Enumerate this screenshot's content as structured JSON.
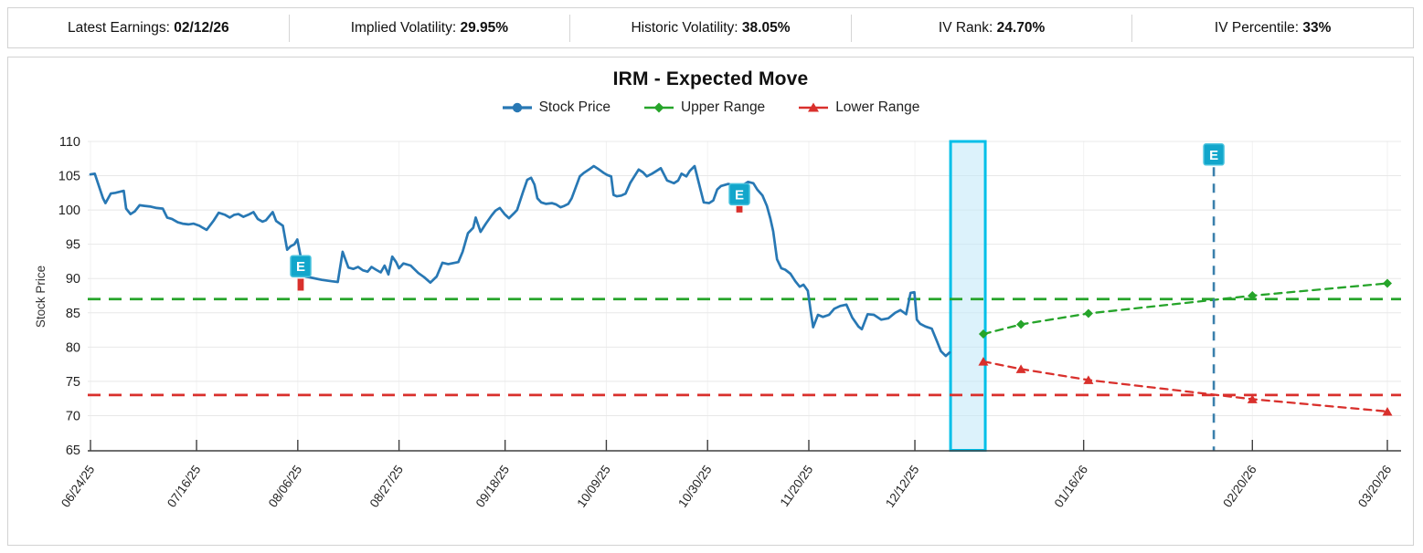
{
  "header": {
    "stats": [
      {
        "label": "Latest Earnings:",
        "value": "02/12/26"
      },
      {
        "label": "Implied Volatility:",
        "value": "29.95%"
      },
      {
        "label": "Historic Volatility:",
        "value": "38.05%"
      },
      {
        "label": "IV Rank:",
        "value": "24.70%"
      },
      {
        "label": "IV Percentile:",
        "value": "33%"
      }
    ]
  },
  "chart_data": {
    "type": "line",
    "title": "IRM - Expected Move",
    "ylabel": "Stock Price",
    "ylim": [
      65,
      110
    ],
    "ytick_step": 5,
    "grid": true,
    "legend_position": "top-center",
    "x_axis": {
      "tick_days": [
        0,
        22,
        43,
        64,
        86,
        107,
        128,
        149,
        171,
        206,
        241,
        269
      ],
      "tick_labels": [
        "06/24/25",
        "07/16/25",
        "08/06/25",
        "08/27/25",
        "09/18/25",
        "10/09/25",
        "10/30/25",
        "11/20/25",
        "12/12/25",
        "01/16/26",
        "02/20/26",
        "03/20/26"
      ]
    },
    "colors": {
      "stock": "#2878b4",
      "upper": "#26a42a",
      "lower": "#d9302c",
      "band_fill": "#bfe8f7",
      "band_border": "#00bfe8",
      "badge": "#12a6cb",
      "earnings_line": "#3b80ac",
      "gridline": "#e8e8e8",
      "axis": "#3f3f3f"
    },
    "series": [
      {
        "name": "Stock Price",
        "color": "#2878b4",
        "style": "solid",
        "marker": "circle",
        "points": [
          [
            0,
            105.2
          ],
          [
            0.9,
            105.3
          ],
          [
            2.6,
            101.7
          ],
          [
            3.1,
            101.0
          ],
          [
            4.2,
            102.4
          ],
          [
            5.2,
            102.5
          ],
          [
            6.9,
            102.8
          ],
          [
            7.4,
            100.2
          ],
          [
            8.3,
            99.4
          ],
          [
            9.2,
            99.8
          ],
          [
            10.2,
            100.7
          ],
          [
            11.2,
            100.6
          ],
          [
            12.5,
            100.5
          ],
          [
            13.7,
            100.3
          ],
          [
            15,
            100.2
          ],
          [
            15.9,
            98.9
          ],
          [
            16.9,
            98.7
          ],
          [
            18.1,
            98.2
          ],
          [
            19.1,
            98.0
          ],
          [
            20.3,
            97.9
          ],
          [
            21.4,
            98.0
          ],
          [
            22.6,
            97.7
          ],
          [
            23.3,
            97.4
          ],
          [
            24.1,
            97.1
          ],
          [
            25.6,
            98.5
          ],
          [
            26.6,
            99.6
          ],
          [
            27.9,
            99.3
          ],
          [
            28.9,
            98.9
          ],
          [
            29.8,
            99.3
          ],
          [
            30.7,
            99.4
          ],
          [
            31.7,
            99.0
          ],
          [
            32.7,
            99.3
          ],
          [
            33.8,
            99.7
          ],
          [
            34.7,
            98.7
          ],
          [
            35.7,
            98.3
          ],
          [
            36.4,
            98.5
          ],
          [
            37.8,
            99.7
          ],
          [
            38.5,
            98.4
          ],
          [
            39.3,
            98.0
          ],
          [
            39.9,
            97.7
          ],
          [
            40.8,
            94.2
          ],
          [
            41.5,
            94.7
          ],
          [
            42.3,
            95.0
          ],
          [
            42.9,
            95.7
          ],
          [
            43.6,
            93.2
          ],
          [
            44.2,
            92.3
          ],
          [
            44.6,
            90.3
          ],
          [
            46,
            90.1
          ],
          [
            48,
            89.8
          ],
          [
            50,
            89.6
          ],
          [
            51.3,
            89.5
          ],
          [
            52.3,
            93.9
          ],
          [
            53.5,
            91.6
          ],
          [
            54.5,
            91.4
          ],
          [
            55.5,
            91.7
          ],
          [
            56.5,
            91.2
          ],
          [
            57.5,
            91.0
          ],
          [
            58.3,
            91.7
          ],
          [
            59.2,
            91.3
          ],
          [
            60.2,
            90.9
          ],
          [
            61,
            91.9
          ],
          [
            61.8,
            90.6
          ],
          [
            62.6,
            93.2
          ],
          [
            63.4,
            92.4
          ],
          [
            64,
            91.5
          ],
          [
            64.9,
            92.2
          ],
          [
            66.4,
            91.9
          ],
          [
            68,
            90.8
          ],
          [
            69.2,
            90.2
          ],
          [
            70.5,
            89.4
          ],
          [
            71.8,
            90.3
          ],
          [
            73,
            92.3
          ],
          [
            74.2,
            92.1
          ],
          [
            76.3,
            92.4
          ],
          [
            77.2,
            93.9
          ],
          [
            78.3,
            96.6
          ],
          [
            79.4,
            97.4
          ],
          [
            79.9,
            98.9
          ],
          [
            80.9,
            96.8
          ],
          [
            82,
            98.0
          ],
          [
            83.2,
            99.2
          ],
          [
            84,
            99.9
          ],
          [
            84.9,
            100.3
          ],
          [
            85.9,
            99.4
          ],
          [
            86.8,
            98.8
          ],
          [
            87.8,
            99.5
          ],
          [
            88.5,
            100.0
          ],
          [
            89.7,
            102.6
          ],
          [
            90.6,
            104.4
          ],
          [
            91.4,
            104.7
          ],
          [
            92.1,
            103.7
          ],
          [
            92.7,
            101.7
          ],
          [
            93.5,
            101.1
          ],
          [
            94.5,
            100.9
          ],
          [
            95.7,
            101.0
          ],
          [
            96.6,
            100.8
          ],
          [
            97.5,
            100.4
          ],
          [
            98.3,
            100.6
          ],
          [
            99.1,
            100.9
          ],
          [
            99.8,
            101.7
          ],
          [
            101.5,
            104.9
          ],
          [
            102.3,
            105.4
          ],
          [
            103.4,
            105.9
          ],
          [
            104.4,
            106.4
          ],
          [
            105.5,
            105.9
          ],
          [
            106.5,
            105.4
          ],
          [
            107.2,
            105.1
          ],
          [
            108,
            104.9
          ],
          [
            108.5,
            102.2
          ],
          [
            109.2,
            102.0
          ],
          [
            110.1,
            102.1
          ],
          [
            111,
            102.4
          ],
          [
            112,
            104.0
          ],
          [
            113.7,
            105.9
          ],
          [
            114.6,
            105.5
          ],
          [
            115.4,
            104.9
          ],
          [
            116.5,
            105.3
          ],
          [
            117.4,
            105.7
          ],
          [
            118.3,
            106.1
          ],
          [
            119.6,
            104.3
          ],
          [
            121,
            103.9
          ],
          [
            121.9,
            104.3
          ],
          [
            122.6,
            105.3
          ],
          [
            123.6,
            104.9
          ],
          [
            124.3,
            105.7
          ],
          [
            125.3,
            106.4
          ],
          [
            126.2,
            103.9
          ],
          [
            127.2,
            101.1
          ],
          [
            128.3,
            101.0
          ],
          [
            129.2,
            101.4
          ],
          [
            130,
            103.0
          ],
          [
            130.8,
            103.5
          ],
          [
            132.3,
            103.8
          ],
          [
            133.8,
            103.5
          ],
          [
            134.8,
            103.4
          ],
          [
            136.4,
            104.1
          ],
          [
            137.5,
            103.9
          ],
          [
            138.3,
            103.0
          ],
          [
            139.4,
            102.1
          ],
          [
            140.3,
            100.6
          ],
          [
            141,
            98.8
          ],
          [
            141.6,
            96.9
          ],
          [
            142.4,
            92.8
          ],
          [
            143.3,
            91.5
          ],
          [
            144.1,
            91.3
          ],
          [
            145.2,
            90.7
          ],
          [
            146.2,
            89.6
          ],
          [
            147.1,
            88.8
          ],
          [
            147.9,
            89.1
          ],
          [
            148.8,
            88.2
          ],
          [
            149.4,
            85.2
          ],
          [
            149.9,
            82.9
          ],
          [
            150.9,
            84.7
          ],
          [
            151.9,
            84.4
          ],
          [
            153.2,
            84.7
          ],
          [
            154.3,
            85.6
          ],
          [
            155.5,
            86.0
          ],
          [
            156.8,
            86.2
          ],
          [
            158,
            84.3
          ],
          [
            159.3,
            83.0
          ],
          [
            160,
            82.6
          ],
          [
            161.2,
            84.8
          ],
          [
            162.5,
            84.7
          ],
          [
            164,
            84.0
          ],
          [
            165.5,
            84.2
          ],
          [
            166.9,
            85.0
          ],
          [
            168,
            85.4
          ],
          [
            169.2,
            84.8
          ],
          [
            170.1,
            87.9
          ],
          [
            170.9,
            88.0
          ],
          [
            171.4,
            84.0
          ],
          [
            172.1,
            83.4
          ],
          [
            173.2,
            83.0
          ],
          [
            174.5,
            82.7
          ],
          [
            175.6,
            80.8
          ],
          [
            176.4,
            79.4
          ],
          [
            177.4,
            78.7
          ],
          [
            178.2,
            79.2
          ]
        ]
      },
      {
        "name": "Upper Range",
        "color": "#26a42a",
        "style": "dashed",
        "marker": "diamond",
        "points": [
          [
            185.2,
            81.9
          ],
          [
            193,
            83.3
          ],
          [
            207,
            84.9
          ],
          [
            241,
            87.5
          ],
          [
            269,
            89.3
          ]
        ]
      },
      {
        "name": "Lower Range",
        "color": "#d9302c",
        "style": "dashed",
        "marker": "triangle",
        "points": [
          [
            185.2,
            77.9
          ],
          [
            193,
            76.8
          ],
          [
            207,
            75.2
          ],
          [
            241,
            72.4
          ],
          [
            269,
            70.6
          ]
        ]
      }
    ],
    "reference_lines": {
      "upper_level": 87.0,
      "lower_level": 73.0,
      "next_earnings_day": 233
    },
    "current_week_band": {
      "x0_day": 178.4,
      "x1_day": 185.6
    },
    "earnings_markers": [
      {
        "day": 43.6,
        "badge_value": 91.8,
        "move_value": 89.1,
        "move_h": 13,
        "label": "E"
      },
      {
        "day": 134.6,
        "badge_value": 102.3,
        "move_value": 100.1,
        "move_h": 7,
        "label": "E"
      },
      {
        "day": 233,
        "badge_value": 108.1,
        "label": "E",
        "vline": true
      }
    ]
  }
}
